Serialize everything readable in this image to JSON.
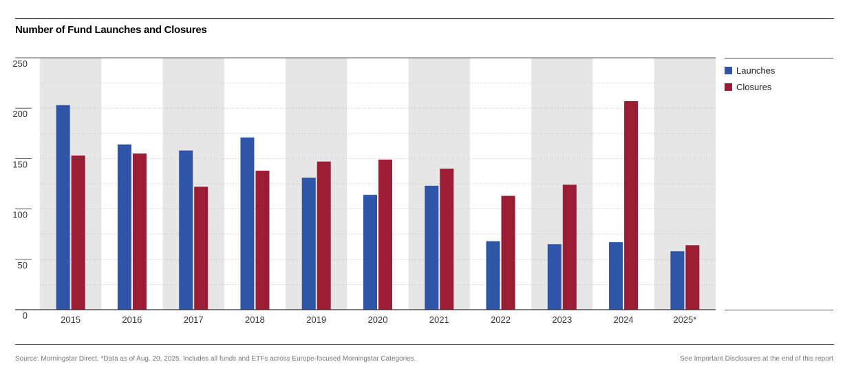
{
  "title": "Number of Fund Launches and Closures",
  "legend": {
    "launches_label": "Launches",
    "closures_label": "Closures"
  },
  "footer": {
    "source": "Source: Morningstar Direct.  *Data as of Aug. 20, 2025. Includes all funds and ETFs across Europe-focused Morningstar Categories.",
    "disclosure": "See Important Disclosures at the end of this report"
  },
  "colors": {
    "launches": "#2F54A8",
    "closures": "#9B1C35",
    "band": "#E6E6E6"
  },
  "chart_data": {
    "type": "bar",
    "title": "Number of Fund Launches and Closures",
    "xlabel": "",
    "ylabel": "",
    "ylim": [
      0,
      250
    ],
    "yticks": [
      0,
      50,
      100,
      150,
      200,
      250
    ],
    "grid": true,
    "legend_position": "right",
    "categories": [
      "2015",
      "2016",
      "2017",
      "2018",
      "2019",
      "2020",
      "2021",
      "2022",
      "2023",
      "2024",
      "2025*"
    ],
    "series": [
      {
        "name": "Launches",
        "values": [
          203,
          164,
          158,
          171,
          131,
          114,
          123,
          68,
          65,
          67,
          58
        ]
      },
      {
        "name": "Closures",
        "values": [
          153,
          155,
          122,
          138,
          147,
          149,
          140,
          113,
          124,
          207,
          64
        ]
      }
    ]
  }
}
